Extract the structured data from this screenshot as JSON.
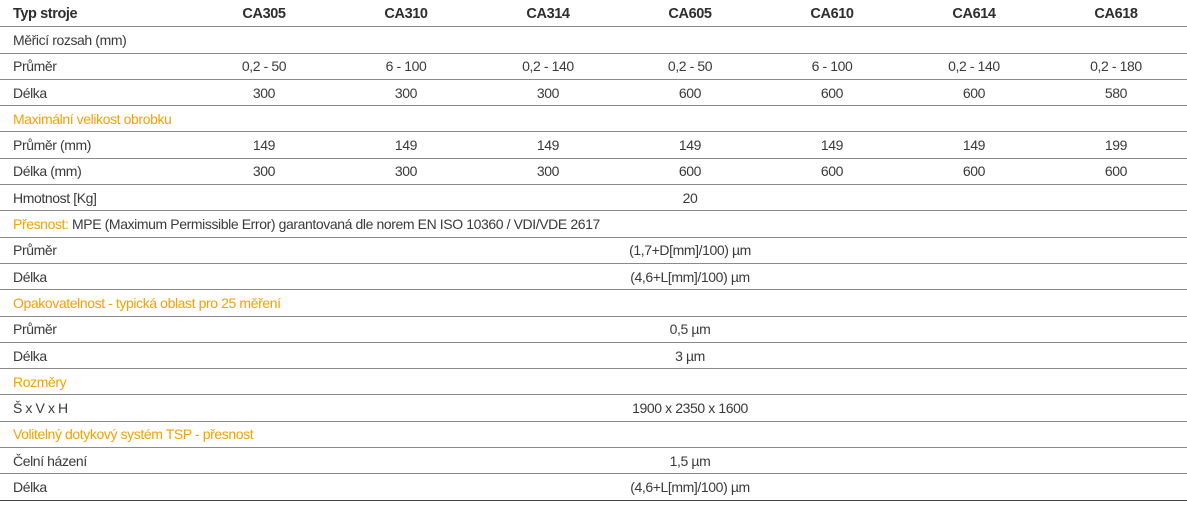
{
  "header": {
    "label": "Typ stroje",
    "models": [
      "CA305",
      "CA310",
      "CA314",
      "CA605",
      "CA610",
      "CA614",
      "CA618"
    ]
  },
  "rows": [
    {
      "type": "plain",
      "label": "Měřicí rozsah (mm)"
    },
    {
      "type": "data",
      "label": "Průměr",
      "values": [
        "0,2 - 50",
        "6 - 100",
        "0,2 - 140",
        "0,2 - 50",
        "6 - 100",
        "0,2 - 140",
        "0,2 - 180"
      ]
    },
    {
      "type": "data",
      "label": "Délka",
      "values": [
        "300",
        "300",
        "300",
        "600",
        "600",
        "600",
        "580"
      ]
    },
    {
      "type": "section",
      "label": "Maximální velikost obrobku"
    },
    {
      "type": "data",
      "label": "Průměr (mm)",
      "values": [
        "149",
        "149",
        "149",
        "149",
        "149",
        "149",
        "199"
      ]
    },
    {
      "type": "data",
      "label": "Délka (mm)",
      "values": [
        "300",
        "300",
        "300",
        "600",
        "600",
        "600",
        "600"
      ]
    },
    {
      "type": "span",
      "label": "Hmotnost [Kg]",
      "value": "20"
    },
    {
      "type": "section",
      "label": "Přesnost:",
      "rest": "MPE (Maximum Permissible Error) garantovaná dle norem EN ISO 10360 / VDI/VDE 2617"
    },
    {
      "type": "span",
      "label": "Průměr",
      "value": "(1,7+D[mm]/100) µm"
    },
    {
      "type": "span",
      "label": "Délka",
      "value": "(4,6+L[mm]/100) µm"
    },
    {
      "type": "section",
      "label": "Opakovatelnost - typická oblast pro 25 měření"
    },
    {
      "type": "span",
      "label": "Průměr",
      "value": "0,5 µm"
    },
    {
      "type": "span",
      "label": "Délka",
      "value": "3 µm"
    },
    {
      "type": "section",
      "label": "Rozměry"
    },
    {
      "type": "span",
      "label": "Š x V x H",
      "value": "1900 x 2350 x 1600"
    },
    {
      "type": "section",
      "label": "Volitelný dotykový systém TSP - přesnost"
    },
    {
      "type": "span",
      "label": "Čelní házení",
      "value": "1,5 µm"
    },
    {
      "type": "span",
      "label": "Délka",
      "value": "(4,6+L[mm]/100) µm"
    }
  ],
  "colors": {
    "accent": "#f5a100",
    "text": "#3a3a3a",
    "rule": "#8a8a8a"
  }
}
